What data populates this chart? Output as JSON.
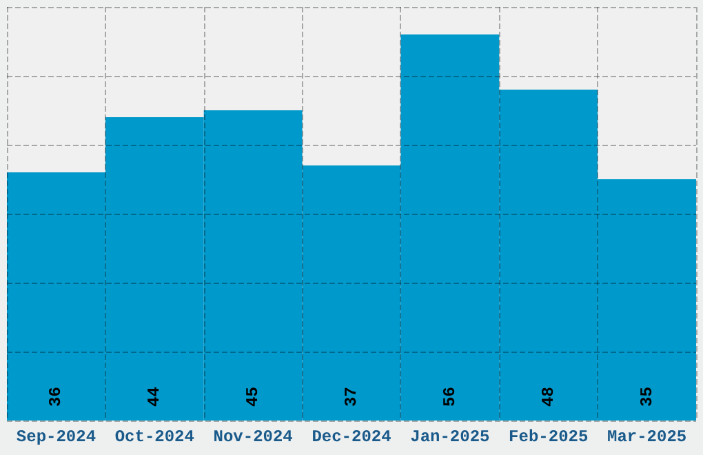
{
  "chart_data": {
    "type": "bar",
    "categories": [
      "Sep-2024",
      "Oct-2024",
      "Nov-2024",
      "Dec-2024",
      "Jan-2025",
      "Feb-2025",
      "Mar-2025"
    ],
    "values": [
      36,
      44,
      45,
      37,
      56,
      48,
      35
    ],
    "color": "#0099cc",
    "data_labels": true,
    "grid": true
  }
}
